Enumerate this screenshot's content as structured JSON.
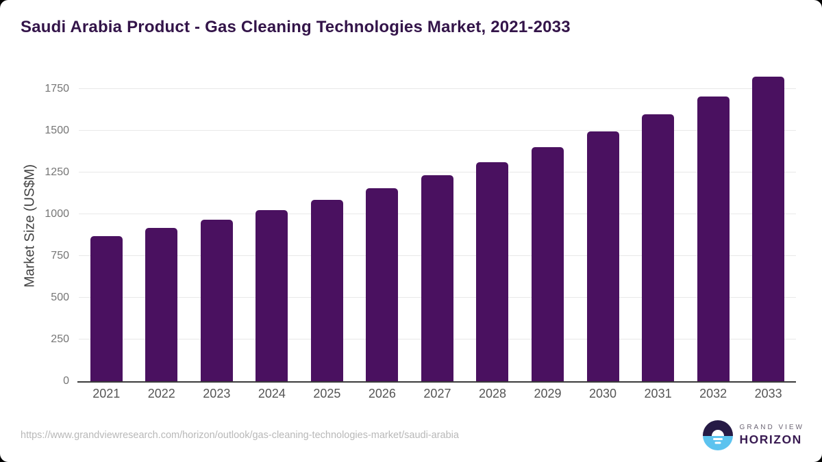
{
  "chart": {
    "title": "Saudi Arabia Product - Gas Cleaning Technologies Market, 2021-2033",
    "ylabel": "Market Size (US$M)"
  },
  "chart_data": {
    "type": "bar",
    "title": "Saudi Arabia Product - Gas Cleaning Technologies Market, 2021-2033",
    "xlabel": "",
    "ylabel": "Market Size (US$M)",
    "categories": [
      "2021",
      "2022",
      "2023",
      "2024",
      "2025",
      "2026",
      "2027",
      "2028",
      "2029",
      "2030",
      "2031",
      "2032",
      "2033"
    ],
    "values": [
      870,
      916,
      968,
      1025,
      1085,
      1155,
      1232,
      1310,
      1400,
      1494,
      1597,
      1706,
      1824
    ],
    "ylim": [
      0,
      1852
    ],
    "yticks": [
      0,
      250,
      500,
      750,
      1000,
      1250,
      1500,
      1750
    ],
    "grid": true,
    "legend": "none",
    "bar_color": "#4a1160"
  },
  "colors": {
    "bar": "#4a1160",
    "title": "#331449",
    "gridline": "#e8e8e8",
    "axis_line": "#3a3a3a",
    "logo_dark": "#261a45",
    "logo_blue": "#5cc3ef"
  },
  "footer": {
    "source_url": "https://www.grandviewresearch.com/horizon/outlook/gas-cleaning-technologies-market/saudi-arabia",
    "logo": {
      "line1": "GRAND VIEW",
      "line2": "HORIZON"
    }
  }
}
